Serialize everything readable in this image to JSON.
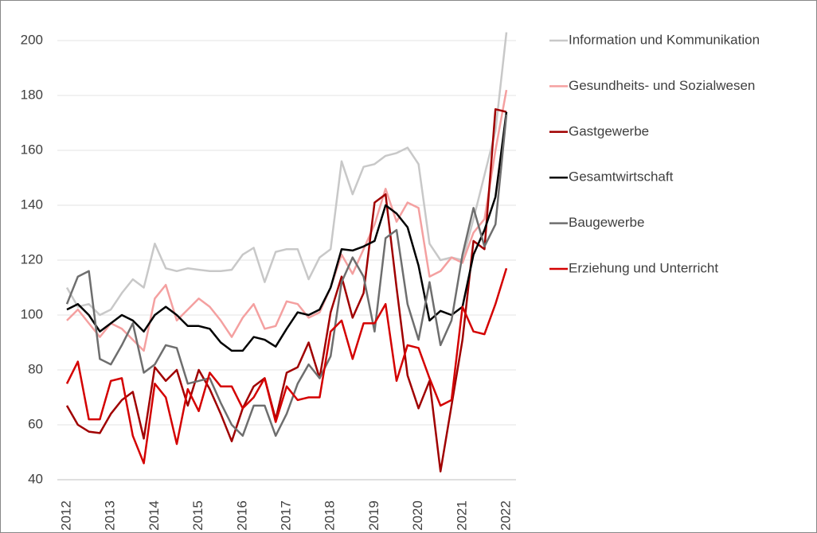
{
  "chart_data": {
    "type": "line",
    "categories": [
      "2012",
      null,
      null,
      null,
      "2013",
      null,
      null,
      null,
      "2014",
      null,
      null,
      null,
      "2015",
      null,
      null,
      null,
      "2016",
      null,
      null,
      null,
      "2017",
      null,
      null,
      null,
      "2018",
      null,
      null,
      null,
      "2019",
      null,
      null,
      null,
      "2020",
      null,
      null,
      null,
      "2021",
      null,
      null,
      null,
      "2022"
    ],
    "ylim": [
      40,
      200
    ],
    "yticks": [
      40,
      60,
      80,
      100,
      120,
      140,
      160,
      180,
      200
    ],
    "grid": true,
    "series": [
      {
        "name": "Information und Kommunikation",
        "color": "#c8c8c8",
        "values": [
          110,
          103,
          104,
          100,
          102,
          108,
          113,
          110,
          126,
          117,
          116,
          117,
          116.5,
          116,
          116,
          116.5,
          122,
          124.5,
          112,
          123,
          124,
          124,
          113,
          121,
          124,
          156,
          144,
          154,
          155,
          158,
          159,
          161,
          155,
          126,
          120,
          121,
          120,
          135,
          151,
          167,
          203
        ]
      },
      {
        "name": "Gesundheits- und Sozialwesen",
        "color": "#f4a0a0",
        "values": [
          98,
          102,
          97,
          92,
          97,
          95,
          91,
          87,
          106,
          111,
          98,
          102,
          106,
          103,
          98,
          92,
          99,
          104,
          95,
          96,
          105,
          104,
          99,
          101,
          110,
          122,
          115,
          124,
          133,
          146,
          134,
          141,
          139,
          114,
          116,
          121,
          119,
          130,
          135,
          160,
          182
        ]
      },
      {
        "name": "Gastgewerbe",
        "color": "#a00000",
        "values": [
          67,
          60,
          57.5,
          57,
          64,
          69,
          72,
          55,
          81,
          76,
          80,
          67,
          80,
          73,
          64,
          54,
          66,
          74,
          77,
          62,
          79,
          81,
          90,
          77,
          101,
          114,
          99,
          108,
          141,
          144,
          110,
          78,
          66,
          76,
          43,
          67,
          91,
          127,
          124,
          175,
          174
        ]
      },
      {
        "name": "Gesamtwirtschaft",
        "color": "#000000",
        "values": [
          102,
          104,
          100,
          94,
          97,
          100,
          98,
          94,
          100,
          103,
          100,
          96,
          96,
          95,
          90,
          87,
          87,
          92,
          91,
          88.5,
          95,
          101,
          100,
          102,
          110,
          124,
          123.5,
          125,
          127,
          140,
          137,
          132,
          118,
          98,
          101.5,
          100,
          103,
          122,
          131,
          143,
          174
        ]
      },
      {
        "name": "Baugewerbe",
        "color": "#6e6e6e",
        "values": [
          104,
          114,
          116,
          84,
          82,
          89,
          97,
          79,
          82,
          89,
          88,
          75,
          76,
          77,
          68,
          60,
          56,
          67,
          67,
          56,
          64,
          75,
          82,
          77,
          85,
          112,
          121,
          114,
          94,
          128,
          131,
          104,
          91,
          112,
          89,
          98,
          122,
          139,
          125,
          133,
          173
        ]
      },
      {
        "name": "Erziehung und Unterricht",
        "color": "#d40000",
        "values": [
          75,
          83,
          62,
          62,
          76,
          77,
          56,
          46,
          75,
          70,
          53,
          73,
          65,
          79,
          74,
          74,
          66,
          70,
          77,
          61,
          74,
          69,
          70,
          70,
          94,
          98,
          84,
          97,
          97,
          104,
          76,
          89,
          88,
          77,
          67,
          69,
          103,
          94,
          93,
          104,
          117
        ]
      }
    ]
  }
}
